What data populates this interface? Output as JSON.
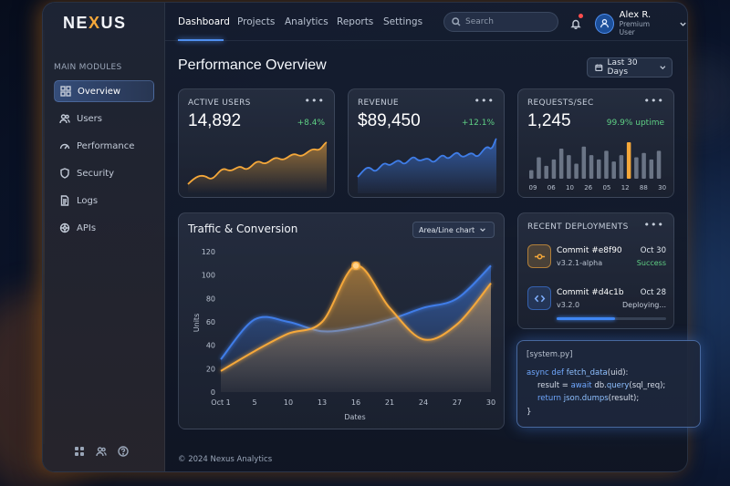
{
  "app": {
    "logo_pre": "NE",
    "logo_x": "X",
    "logo_post": "US"
  },
  "sidebar": {
    "section_title": "MAIN MODULES",
    "items": [
      {
        "label": "Overview",
        "icon": "grid-icon",
        "active": true
      },
      {
        "label": "Users",
        "icon": "users-icon",
        "active": false
      },
      {
        "label": "Performance",
        "icon": "gauge-icon",
        "active": false
      },
      {
        "label": "Security",
        "icon": "shield-icon",
        "active": false
      },
      {
        "label": "Logs",
        "icon": "file-icon",
        "active": false
      },
      {
        "label": "APIs",
        "icon": "network-icon",
        "active": false
      }
    ],
    "bottom_icons": [
      "apps-icon",
      "team-icon",
      "help-icon"
    ]
  },
  "topnav": {
    "tabs": [
      "Dashboard",
      "Projects",
      "Analytics",
      "Reports",
      "Settings"
    ],
    "active_tab": "Dashboard",
    "search_placeholder": "Search",
    "user": {
      "name": "Alex R.",
      "role": "Premium User"
    }
  },
  "main": {
    "title": "Performance Overview",
    "date_range": "Last 30 Days"
  },
  "kpis": {
    "users": {
      "title": "ACTIVE USERS",
      "value": "14,892",
      "delta": "+8.4%",
      "color": "#f5a83a"
    },
    "revenue": {
      "title": "REVENUE",
      "value": "$89,450",
      "delta": "+12.1%",
      "color": "#3f7de8"
    },
    "requests": {
      "title": "REQUESTS/SEC",
      "value": "1,245",
      "uptime": "99.9% uptime",
      "bars": [
        4,
        10,
        6,
        9,
        14,
        11,
        7,
        15,
        11,
        9,
        13,
        8,
        11,
        17,
        10,
        12,
        9,
        13
      ],
      "highlight_index": 13,
      "labels": [
        "09",
        "06",
        "10",
        "26",
        "05",
        "12",
        "88",
        "30"
      ]
    }
  },
  "traffic_chart": {
    "title": "Traffic & Conversion",
    "selector": "Area/Line chart",
    "ylabel": "Units",
    "xlabel": "Dates",
    "yticks": [
      "0",
      "20",
      "40",
      "60",
      "80",
      "100",
      "120"
    ],
    "xticks": [
      "Oct 1",
      "5",
      "10",
      "13",
      "16",
      "21",
      "24",
      "27",
      "30"
    ]
  },
  "chart_data": {
    "type": "area",
    "xlabel": "Dates",
    "ylabel": "Units",
    "ylim": [
      0,
      120
    ],
    "x": [
      "Oct 1",
      "5",
      "10",
      "13",
      "16",
      "21",
      "24",
      "27",
      "30"
    ],
    "series": [
      {
        "values": [
          28,
          62,
          60,
          52,
          55,
          62,
          72,
          80,
          108
        ],
        "color": "#3f7de8"
      },
      {
        "values": [
          18,
          35,
          50,
          60,
          108,
          72,
          45,
          58,
          93
        ],
        "color": "#f5a83a"
      }
    ],
    "grid": false
  },
  "deployments": {
    "title": "RECENT DEPLOYMENTS",
    "items": [
      {
        "name": "Commit #e8f90",
        "version": "v3.2.1-alpha",
        "date": "Oct 30",
        "status": "Success",
        "status_color": "#5fd084",
        "icon": "commit-icon"
      },
      {
        "name": "Commit #d4c1b",
        "version": "v3.2.0",
        "date": "Oct 28",
        "status": "Deploying...",
        "status_color": "#c5cdda",
        "icon": "code-icon",
        "progress": 0.53
      }
    ]
  },
  "code": {
    "filename": "[system.py]",
    "l1_kw": "async def ",
    "l1_fn": "fetch_data",
    "l1_rest": "(uid):",
    "l2_a": "result = ",
    "l2_kw": "await",
    "l2_b": " db.",
    "l2_fn": "query",
    "l2_c": "(sql_req);",
    "l3_kw": "return ",
    "l3_fn": "json.dumps",
    "l3_c": "(result);",
    "l4": "}"
  },
  "footer": "© 2024 Nexus Analytics"
}
